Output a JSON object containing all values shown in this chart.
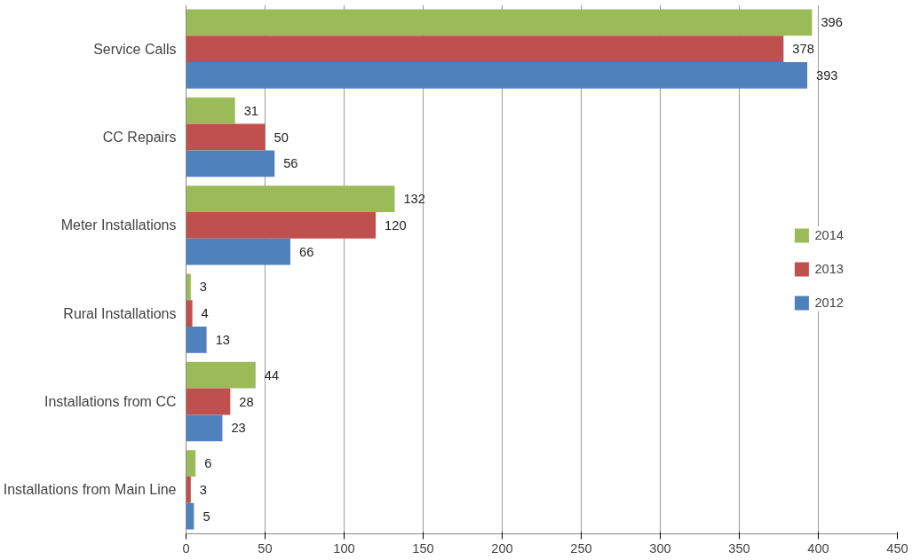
{
  "chart_data": {
    "type": "bar",
    "orientation": "horizontal",
    "categories": [
      "Service Calls",
      "CC Repairs",
      "Meter Installations",
      "Rural Installations",
      "Installations from CC",
      "Installations from Main Line"
    ],
    "series": [
      {
        "name": "2014",
        "color": "#9bbb59",
        "values": [
          396,
          31,
          132,
          3,
          44,
          6
        ]
      },
      {
        "name": "2013",
        "color": "#c0504d",
        "values": [
          378,
          50,
          120,
          4,
          28,
          3
        ]
      },
      {
        "name": "2012",
        "color": "#4f81bd",
        "values": [
          393,
          56,
          66,
          13,
          23,
          5
        ]
      }
    ],
    "xlim": [
      0,
      450
    ],
    "xticks": [
      0,
      50,
      100,
      150,
      200,
      250,
      300,
      350,
      400,
      450
    ],
    "grid": "x",
    "legend": "right",
    "data_labels": true
  }
}
